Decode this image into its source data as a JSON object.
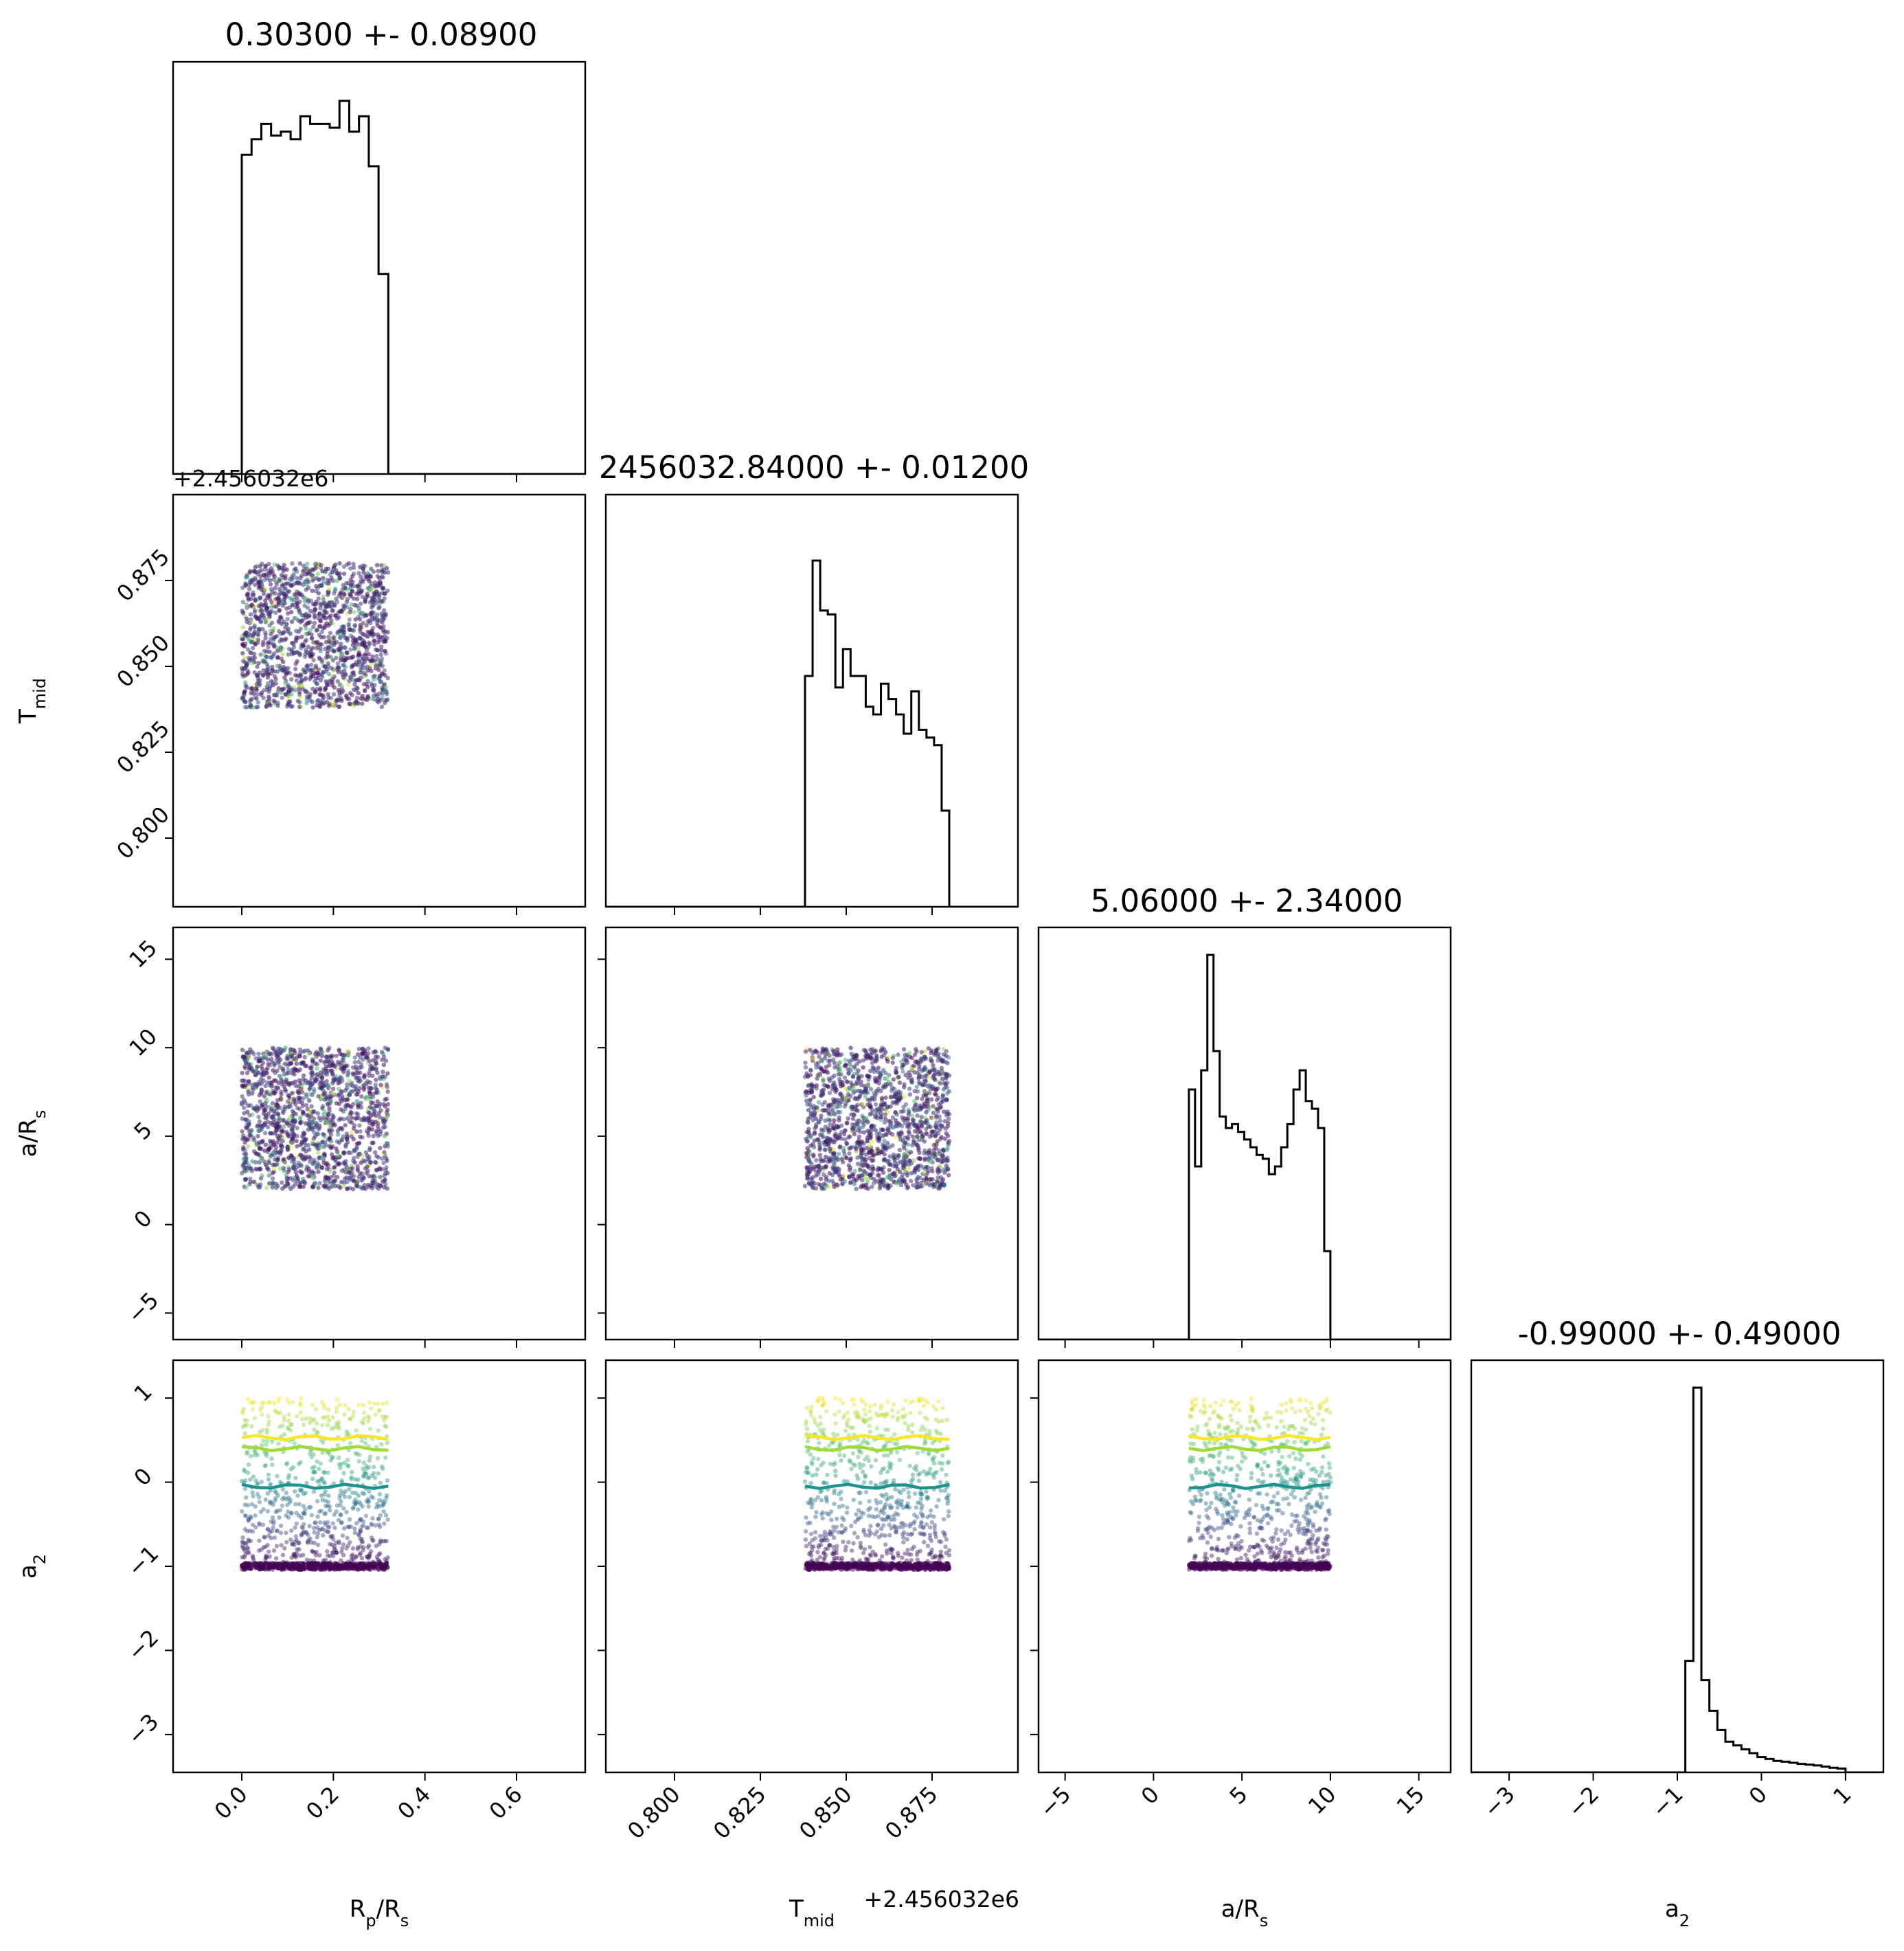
{
  "figure": {
    "type": "corner-plot",
    "colormap": [
      "#440154",
      "#3b528b",
      "#21918c",
      "#5ec962",
      "#fde725"
    ]
  },
  "chart_data": {
    "type": "corner",
    "parameters": [
      {
        "key": "rp",
        "label": "R",
        "label_sub": "p",
        "label_rest": "/R",
        "label_sub2": "s",
        "title": "0.30300 +- 0.08900",
        "range": [
          -0.15,
          0.75
        ],
        "ticks": [
          0.0,
          0.2,
          0.4,
          0.6
        ],
        "tick_labels": [
          "0.0",
          "0.2",
          "0.4",
          "0.6"
        ],
        "sample_range": [
          0.0,
          0.32
        ],
        "offset_x": "",
        "offset_y": "+2.456032e6",
        "hist": [
          0.83,
          0.87,
          0.91,
          0.88,
          0.89,
          0.87,
          0.93,
          0.91,
          0.91,
          0.9,
          0.97,
          0.89,
          0.93,
          0.8,
          0.52
        ]
      },
      {
        "key": "tmid",
        "label": "T",
        "label_sub": "mid",
        "label_rest": "",
        "label_sub2": "",
        "title": "2456032.84000 +- 0.01200",
        "range": [
          0.78,
          0.9
        ]
      },
      {
        "key": "ars",
        "label": "a/R",
        "label_sub": "s",
        "label_rest": "",
        "label_sub2": "",
        "title": "5.06000 +- 2.34000",
        "range": [
          -6.5,
          16.8
        ],
        "ticks": [
          -5,
          0,
          5,
          10,
          15
        ],
        "tick_labels": [
          "−5",
          "0",
          "5",
          "10",
          "15"
        ],
        "sample_range": [
          2.0,
          10.0
        ],
        "offset_x": "",
        "offset_y": "",
        "hist": [
          0.65,
          0.45,
          0.7,
          1.0,
          0.75,
          0.58,
          0.55,
          0.56,
          0.54,
          0.52,
          0.5,
          0.48,
          0.47,
          0.43,
          0.45,
          0.5,
          0.56,
          0.65,
          0.7,
          0.62,
          0.6,
          0.55,
          0.23
        ]
      },
      {
        "key": "a2",
        "label": "a",
        "label_sub": "2",
        "label_rest": "",
        "label_sub2": "",
        "title": "-0.99000 +- 0.49000",
        "range": [
          -3.45,
          1.45
        ],
        "ticks": [
          -3,
          -2,
          -1,
          0,
          1
        ],
        "tick_labels": [
          "−3",
          "−2",
          "−1",
          "0",
          "1"
        ],
        "sample_range": [
          -1.0,
          1.0
        ],
        "offset_x": "",
        "offset_y": "",
        "hist": [
          0.0,
          0.29,
          1.0,
          0.24,
          0.16,
          0.11,
          0.08,
          0.07,
          0.06,
          0.05,
          0.04,
          0.035,
          0.03,
          0.028,
          0.025,
          0.022,
          0.02,
          0.018,
          0.015,
          0.012,
          0.01
        ]
      }
    ],
    "tmid_axis": {
      "ticks": [
        0.8,
        0.825,
        0.85,
        0.875
      ],
      "tick_labels": [
        "0.800",
        "0.825",
        "0.850",
        "0.875"
      ],
      "sample_range": [
        0.838,
        0.88
      ],
      "offset_x": "+2.456032e6",
      "offset_y": "+2.456032e6",
      "hist": [
        0.6,
        0.9,
        0.77,
        0.76,
        0.57,
        0.67,
        0.6,
        0.6,
        0.52,
        0.5,
        0.58,
        0.54,
        0.5,
        0.45,
        0.56,
        0.46,
        0.44,
        0.42,
        0.25
      ]
    },
    "a2_trend_lines": [
      {
        "quantile": "top",
        "color": "#fde725",
        "y": 0.53
      },
      {
        "quantile": "upper",
        "color": "#a0da39",
        "y": 0.4
      },
      {
        "quantile": "middle",
        "color": "#21918c",
        "y": -0.05
      }
    ]
  }
}
